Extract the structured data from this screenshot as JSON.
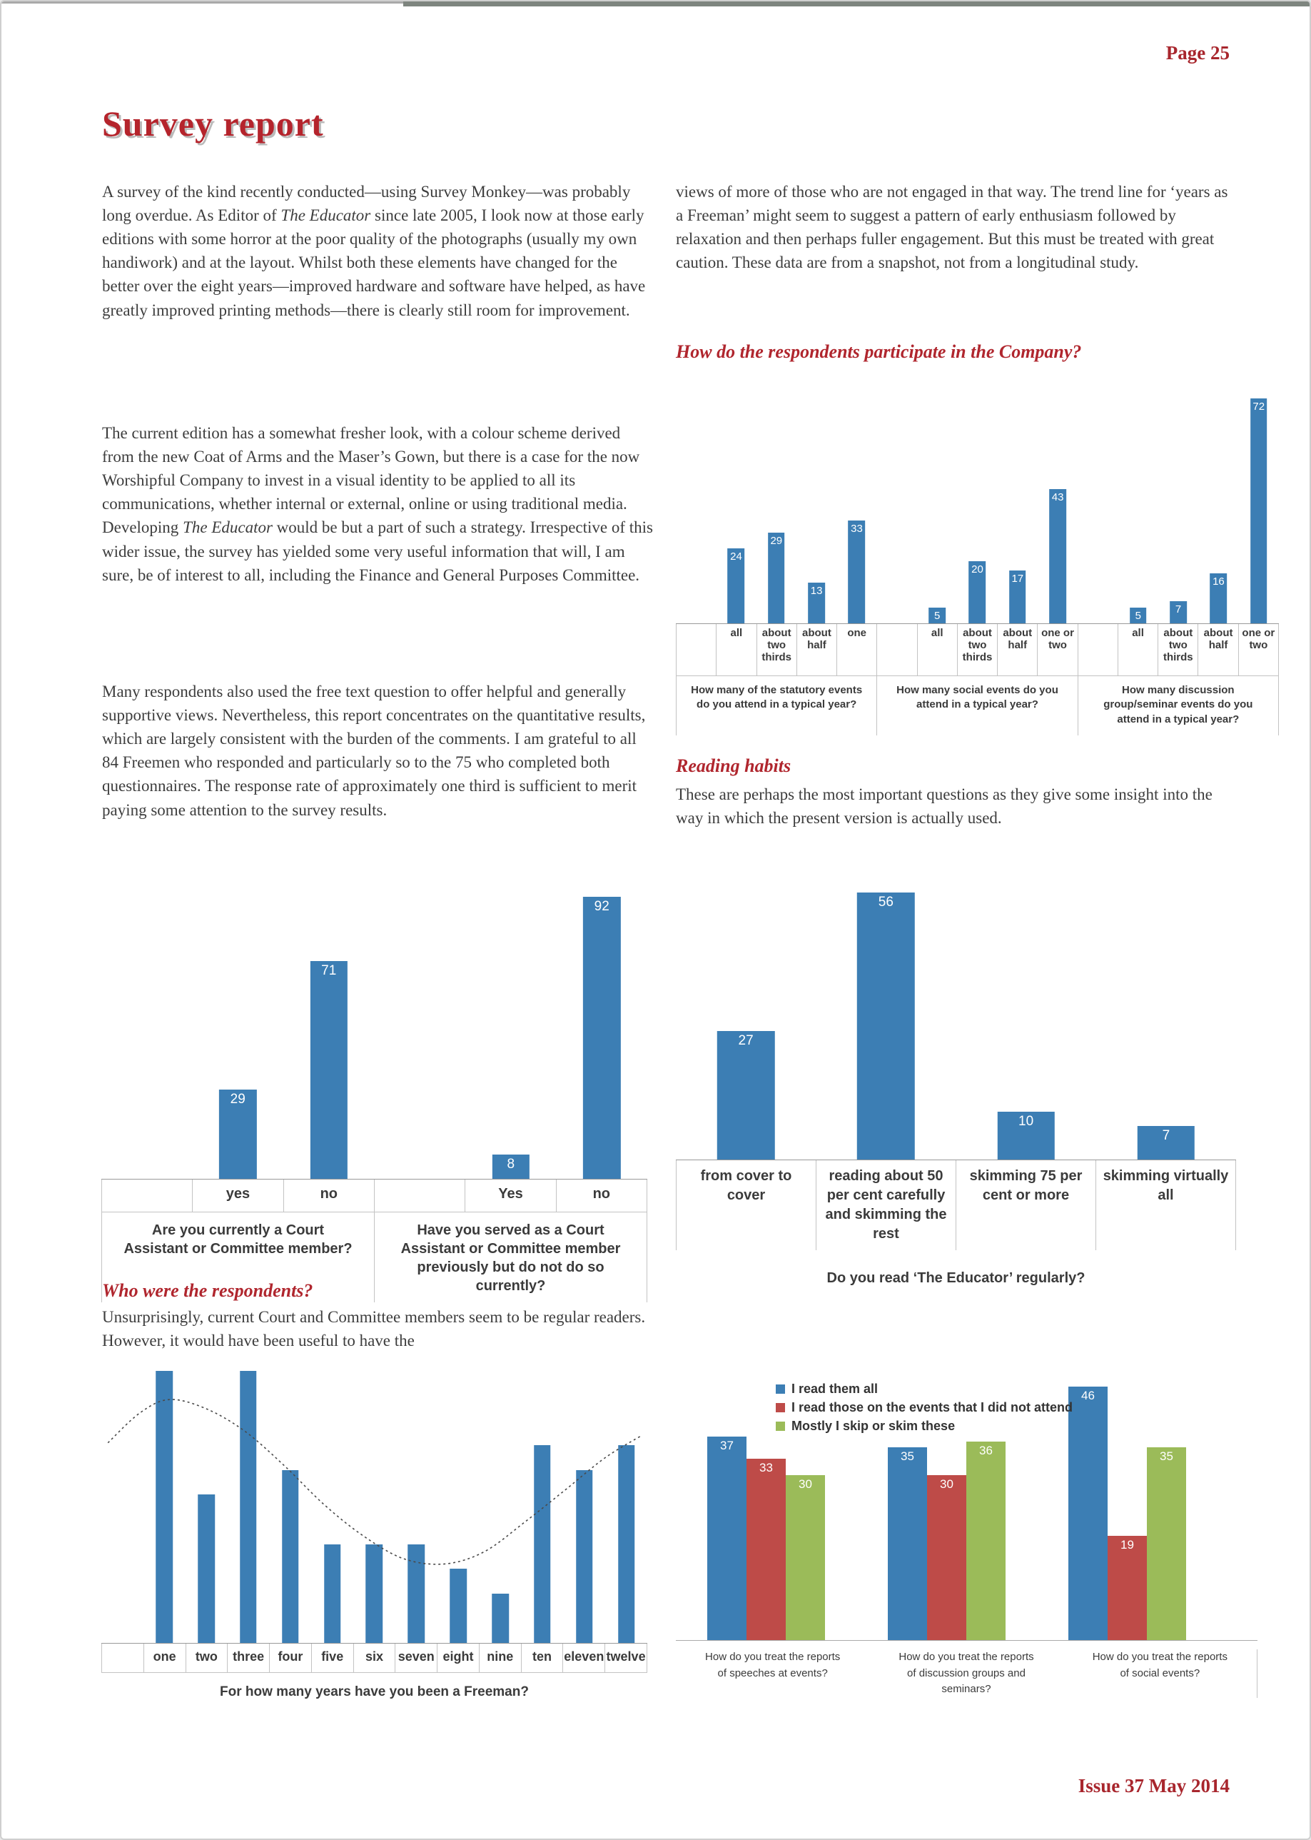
{
  "colors": {
    "accent_red": "#B0262E",
    "bar_blue": "#3C7EB4",
    "series_red": "#BE4B48",
    "series_green": "#9BBB59"
  },
  "header": {
    "page_label": "Page 25",
    "title": "Survey report"
  },
  "body": {
    "p1_segments": [
      {
        "t": "A survey of the kind recently conducted—using Survey Monkey—was probably long overdue. As Editor of "
      },
      {
        "t": "The Educator",
        "i": true
      },
      {
        "t": " since late 2005, I look now at those early editions with some horror at the poor quality of the photographs (usually my own handiwork) and at the layout. Whilst both these elements have changed for the better over the eight years—improved hardware and software have helped, as have greatly improved printing methods—there is clearly still room for improvement."
      }
    ],
    "p2_segments": [
      {
        "t": "The current edition has a somewhat fresher look, with a colour scheme derived from the new Coat of Arms and the Maser’s Gown, but there is a case for the now Worshipful Company to invest in a visual identity to be applied to all its communications, whether internal or external, online or using traditional media. Developing "
      },
      {
        "t": "The Educator",
        "i": true
      },
      {
        "t": " would be but a part of such a strategy. Irrespective of this wider issue, the survey has yielded some very useful information that will, I am sure, be of interest to all, including the Finance and General Purposes Committee."
      }
    ],
    "p3": "Many respondents also used the free text question to offer helpful and generally supportive views. Nevertheless, this report concentrates on the quantitative results, which are largely consistent with the burden of the comments. I am grateful to all 84 Freemen who responded and particularly so to the 75 who completed both questionnaires. The response rate of approximately one third is sufficient to merit paying some attention to the survey results.",
    "p_views": "views of more of those who are not engaged in that way. The trend line for ‘years as a Freeman’ might seem to suggest a pattern of early enthusiasm followed by relaxation and then perhaps fuller engagement. But this must be treated with great caution. These data are from a snapshot, not from a longitudinal study.",
    "h_participate": "How do the respondents participate in the Company?",
    "h_reading": "Reading habits",
    "p_reading": "These are perhaps the most important questions as they give some insight into the way in which the present version is actually used.",
    "h_respondents": "Who were the respondents?",
    "p_respondents": "Unsurprisingly, current Court and Committee members seem to be regular readers. However, it would have been useful to have the"
  },
  "footer": {
    "issue_label": "Issue 37 May 2014"
  },
  "chart_data": [
    {
      "id": "participation",
      "type": "bar",
      "bar_color": "#3C7EB4",
      "ylim": [
        0,
        76
      ],
      "grid": false,
      "groups": [
        {
          "question": "How many of the statutory events do you attend in a typical year?",
          "categories": [
            "all",
            "about two thirds",
            "about half",
            "one"
          ],
          "values": [
            24,
            29,
            13,
            33
          ]
        },
        {
          "question": "How many social events do you attend in a typical year?",
          "categories": [
            "all",
            "about two thirds",
            "about half",
            "one or two"
          ],
          "values": [
            5,
            20,
            17,
            43
          ]
        },
        {
          "question": "How many discussion group/seminar events do you attend in a typical year?",
          "categories": [
            "all",
            "about two thirds",
            "about half",
            "one or two"
          ],
          "values": [
            5,
            7,
            16,
            72
          ]
        }
      ]
    },
    {
      "id": "court",
      "type": "bar",
      "bar_color": "#3C7EB4",
      "ylim": [
        0,
        95
      ],
      "grid": false,
      "groups": [
        {
          "question": "Are you currently a Court Assistant or Committee member?",
          "categories": [
            "yes",
            "no"
          ],
          "values": [
            29,
            71
          ]
        },
        {
          "question": "Have you served as a Court Assistant or Committee member previously but do not do so currently?",
          "categories": [
            "Yes",
            "no"
          ],
          "values": [
            8,
            92
          ]
        }
      ]
    },
    {
      "id": "read-regularly",
      "type": "bar",
      "bar_color": "#3C7EB4",
      "ylim": [
        0,
        58
      ],
      "grid": false,
      "categories": [
        "from cover to cover",
        "reading about 50 per cent carefully and skimming the rest",
        "skimming 75 per cent or more",
        "skimming virtually all"
      ],
      "values": [
        27,
        56,
        10,
        7
      ],
      "xlabel": "Do you read ‘The Educator’ regularly?"
    },
    {
      "id": "freeman-years",
      "type": "bar",
      "bar_color": "#3C7EB4",
      "ylim": [
        0,
        11.3
      ],
      "grid": false,
      "categories": [
        "one",
        "two",
        "three",
        "four",
        "five",
        "six",
        "seven",
        "eight",
        "nine",
        "ten",
        "eleven",
        "twelve"
      ],
      "values": [
        11,
        6,
        11,
        7,
        4,
        4,
        4,
        3,
        2,
        8,
        7,
        8
      ],
      "xlabel": "For how many years have you been a Freeman?",
      "trend": [
        [
          0.012,
          8.1
        ],
        [
          0.07,
          9.3
        ],
        [
          0.124,
          9.85
        ],
        [
          0.19,
          9.5
        ],
        [
          0.261,
          8.6
        ],
        [
          0.334,
          7.2
        ],
        [
          0.408,
          5.6
        ],
        [
          0.482,
          4.3
        ],
        [
          0.555,
          3.4
        ],
        [
          0.63,
          3.2
        ],
        [
          0.702,
          3.7
        ],
        [
          0.776,
          4.9
        ],
        [
          0.85,
          6.2
        ],
        [
          0.923,
          7.5
        ],
        [
          0.99,
          8.4
        ]
      ]
    },
    {
      "id": "reports",
      "type": "bar",
      "ylim": [
        0,
        48
      ],
      "grid": false,
      "legend_position": "top-left",
      "series": [
        {
          "name": "I read them all",
          "color": "#3C7EB4"
        },
        {
          "name": "I read those on the events that I did not attend",
          "color": "#BE4B48"
        },
        {
          "name": "Mostly I skip or skim these",
          "color": "#9BBB59"
        }
      ],
      "groups": [
        {
          "question": "How do you treat the reports of speeches at events?",
          "values": [
            37,
            33,
            30
          ]
        },
        {
          "question": "How do you treat the reports of discussion groups and seminars?",
          "values": [
            35,
            30,
            36
          ]
        },
        {
          "question": "How do you treat the reports of social events?",
          "values": [
            46,
            19,
            35
          ]
        }
      ]
    }
  ]
}
